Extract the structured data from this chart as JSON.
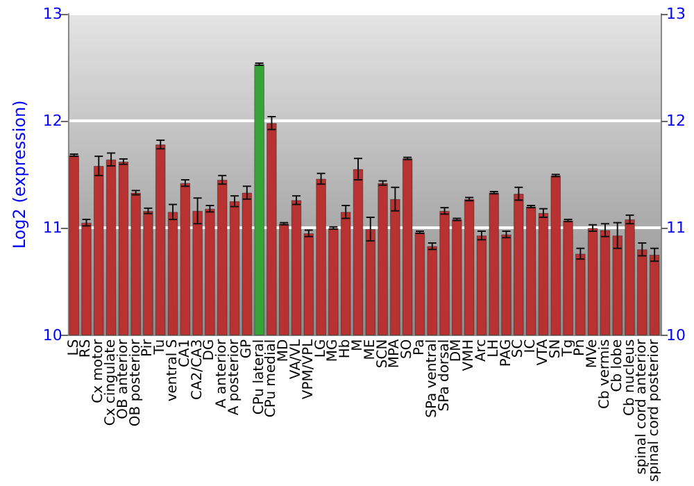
{
  "chart_data": {
    "type": "bar",
    "ylabel": "Log2 (expression)",
    "categories": [
      "LS",
      "RS",
      "Cx motor",
      "Cx cingulate",
      "OB anterior",
      "OB posterior",
      "Pir",
      "Tu",
      "ventral S",
      "CA1",
      "CA2/CA3",
      "DG",
      "A anterior",
      "A posterior",
      "GP",
      "CPu lateral",
      "CPu medial",
      "MD",
      "VA/VL",
      "VPM/VPL",
      "LG",
      "MG",
      "Hb",
      "M",
      "ME",
      "SCN",
      "MPA",
      "SO",
      "Pa",
      "SPa ventral",
      "SPa dorsal",
      "DM",
      "VMH",
      "Arc",
      "LH",
      "PAG",
      "SC",
      "IC",
      "VTA",
      "SN",
      "Tg",
      "Pn",
      "MVe",
      "Cb vermis",
      "Cb lobe",
      "Cb nucleus",
      "spinal cord anterior",
      "spinal cord posterior"
    ],
    "values": [
      11.68,
      11.05,
      11.58,
      11.64,
      11.62,
      11.33,
      11.16,
      11.78,
      11.15,
      11.42,
      11.16,
      11.18,
      11.45,
      11.25,
      11.33,
      12.53,
      11.98,
      11.04,
      11.26,
      10.95,
      11.46,
      11.0,
      11.15,
      11.55,
      10.99,
      11.42,
      11.27,
      11.65,
      10.96,
      10.83,
      11.16,
      11.08,
      11.27,
      10.93,
      11.33,
      10.94,
      11.32,
      11.2,
      11.14,
      11.49,
      11.07,
      10.76,
      11.0,
      10.98,
      10.93,
      11.08,
      10.8,
      10.75
    ],
    "errors": [
      0.01,
      0.03,
      0.09,
      0.06,
      0.025,
      0.02,
      0.025,
      0.04,
      0.07,
      0.03,
      0.12,
      0.03,
      0.04,
      0.05,
      0.06,
      0.01,
      0.06,
      0.01,
      0.04,
      0.03,
      0.05,
      0.01,
      0.06,
      0.1,
      0.11,
      0.02,
      0.11,
      0.01,
      0.01,
      0.03,
      0.03,
      0.01,
      0.015,
      0.04,
      0.01,
      0.03,
      0.06,
      0.01,
      0.04,
      0.01,
      0.01,
      0.05,
      0.03,
      0.06,
      0.12,
      0.04,
      0.06,
      0.06
    ],
    "colors": [
      "#b83232",
      "#b83232",
      "#b83232",
      "#b83232",
      "#b83232",
      "#b83232",
      "#b83232",
      "#b83232",
      "#b83232",
      "#b83232",
      "#b83232",
      "#b83232",
      "#b83232",
      "#b83232",
      "#b83232",
      "#36a436",
      "#b83232",
      "#b83232",
      "#b83232",
      "#b83232",
      "#b83232",
      "#b83232",
      "#b83232",
      "#b83232",
      "#b83232",
      "#b83232",
      "#b83232",
      "#b83232",
      "#b83232",
      "#b83232",
      "#b83232",
      "#b83232",
      "#b83232",
      "#b83232",
      "#b83232",
      "#b83232",
      "#b83232",
      "#b83232",
      "#b83232",
      "#b83232",
      "#b83232",
      "#b83232",
      "#b83232",
      "#b83232",
      "#b83232",
      "#b83232",
      "#b83232",
      "#b83232"
    ],
    "ylim": [
      10,
      13
    ],
    "yticks": [
      10,
      11,
      12,
      13
    ],
    "y2lim": [
      10,
      13
    ],
    "y2ticks": [
      10,
      11,
      12,
      13
    ],
    "grid": "y"
  }
}
